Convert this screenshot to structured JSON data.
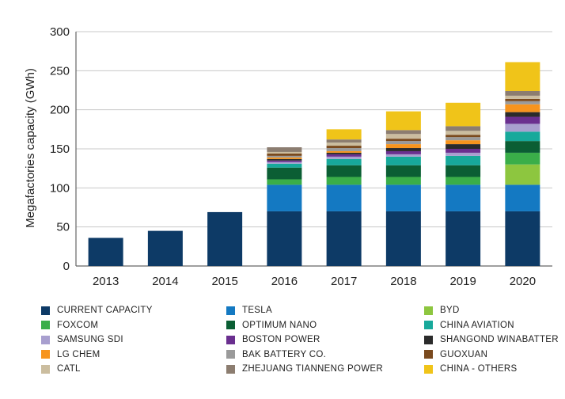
{
  "chart_data": {
    "type": "bar",
    "stacked": true,
    "title": "",
    "xlabel": "",
    "ylabel": "Megafactories capacity (GWh)",
    "ylim": [
      0,
      300
    ],
    "yticks": [
      0,
      50,
      100,
      150,
      200,
      250,
      300
    ],
    "grid": true,
    "legend_position": "bottom",
    "categories": [
      "2013",
      "2014",
      "2015",
      "2016",
      "2017",
      "2018",
      "2019",
      "2020"
    ],
    "series": [
      {
        "name": "CURRENT CAPACITY",
        "color": "#0d3a66",
        "values": [
          36,
          45,
          69,
          70,
          70,
          70,
          70,
          70
        ]
      },
      {
        "name": "TESLA",
        "color": "#1479c2",
        "values": [
          0,
          0,
          0,
          34,
          34,
          34,
          34,
          34
        ]
      },
      {
        "name": "BYD",
        "color": "#8dc63f",
        "values": [
          0,
          0,
          0,
          0,
          0,
          0,
          0,
          26
        ]
      },
      {
        "name": "FOXCOM",
        "color": "#3aae49",
        "values": [
          0,
          0,
          0,
          7,
          10,
          10,
          10,
          15
        ]
      },
      {
        "name": "OPTIMUM NANO",
        "color": "#0b5e34",
        "values": [
          0,
          0,
          0,
          15,
          15,
          15,
          15,
          15
        ]
      },
      {
        "name": "CHINA AVIATION",
        "color": "#17a99b",
        "values": [
          0,
          0,
          0,
          5,
          8,
          11,
          12,
          12
        ]
      },
      {
        "name": "SAMSUNG SDI",
        "color": "#a89fcf",
        "values": [
          0,
          0,
          0,
          2,
          3,
          3,
          4,
          10
        ]
      },
      {
        "name": "BOSTON POWER",
        "color": "#6a2f8f",
        "values": [
          0,
          0,
          0,
          2,
          3,
          4,
          5,
          9
        ]
      },
      {
        "name": "SHANGOND WINABATTER",
        "color": "#2b2b2b",
        "values": [
          0,
          0,
          0,
          2,
          2,
          4,
          6,
          6
        ]
      },
      {
        "name": "LG CHEM",
        "color": "#f7941d",
        "values": [
          0,
          0,
          0,
          2,
          2,
          5,
          5,
          10
        ]
      },
      {
        "name": "BAK BATTERY CO.",
        "color": "#9a9a9a",
        "values": [
          0,
          0,
          0,
          2,
          4,
          4,
          4,
          4
        ]
      },
      {
        "name": "GUOXUAN",
        "color": "#7a4a1e",
        "values": [
          0,
          0,
          0,
          3,
          3,
          3,
          3,
          3
        ]
      },
      {
        "name": "CATL",
        "color": "#cbbd9f",
        "values": [
          0,
          0,
          0,
          2,
          4,
          6,
          5,
          4
        ]
      },
      {
        "name": "ZHEJUANG TIANNENG POWER",
        "color": "#8c7d70",
        "values": [
          0,
          0,
          0,
          6,
          4,
          5,
          6,
          6
        ]
      },
      {
        "name": "CHINA - OTHERS",
        "color": "#f0c419",
        "values": [
          0,
          0,
          0,
          0,
          13,
          24,
          30,
          37
        ]
      }
    ]
  }
}
